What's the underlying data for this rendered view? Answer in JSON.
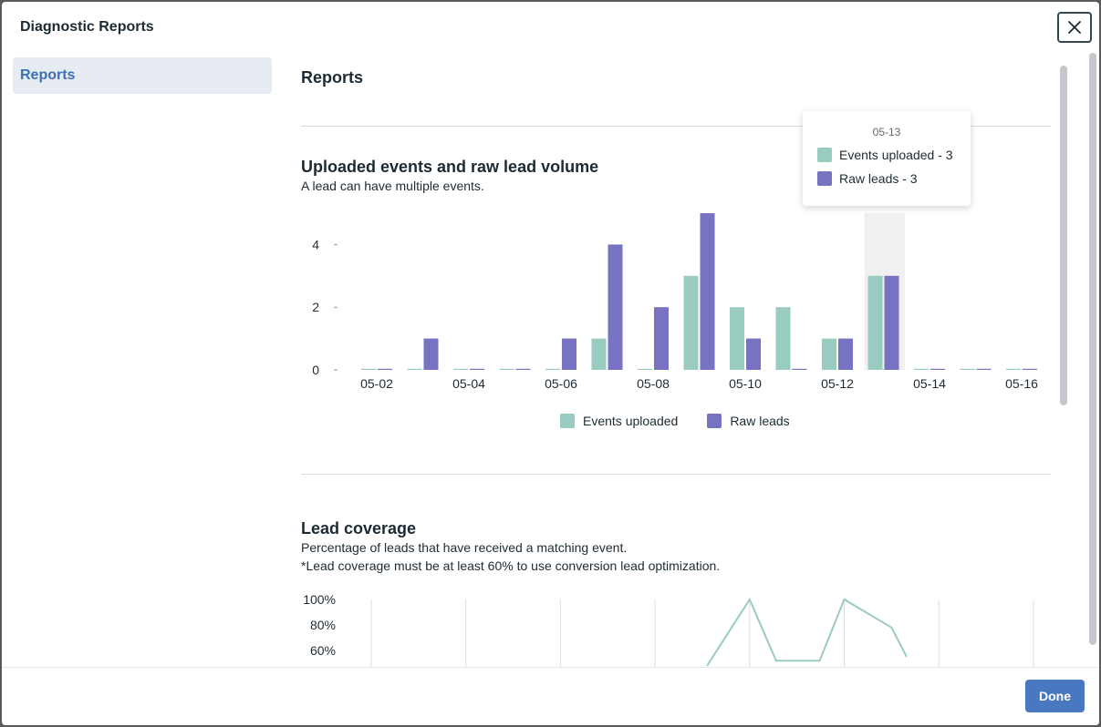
{
  "dialog": {
    "title": "Diagnostic Reports",
    "close_icon": "close-icon",
    "done_label": "Done"
  },
  "sidebar": {
    "items": [
      {
        "label": "Reports",
        "selected": true
      }
    ]
  },
  "main": {
    "title": "Reports",
    "sections": [
      {
        "title": "Uploaded events and raw lead volume",
        "subtitle": "A lead can have multiple events."
      },
      {
        "title": "Lead coverage",
        "subtitle": "Percentage of leads that have received a matching event.",
        "note": "*Lead coverage must be at least 60% to use conversion lead optimization."
      }
    ]
  },
  "tooltip": {
    "date": "05-13",
    "events_label": "Events uploaded - 3",
    "leads_label": "Raw leads - 3"
  },
  "colors": {
    "events": "#9acbc0",
    "leads": "#7772c2",
    "accent": "#4a78c0"
  },
  "chart_data": [
    {
      "type": "bar",
      "categories": [
        "05-02",
        "05-03",
        "05-04",
        "05-05",
        "05-06",
        "05-07",
        "05-08",
        "05-09",
        "05-10",
        "05-11",
        "05-12",
        "05-13",
        "05-14",
        "05-15",
        "05-16"
      ],
      "tick_labels": [
        "05-02",
        "05-04",
        "05-06",
        "05-08",
        "05-10",
        "05-12",
        "05-14",
        "05-16"
      ],
      "series": [
        {
          "name": "Events uploaded",
          "values": [
            0,
            0,
            0,
            0,
            0,
            1,
            0,
            3,
            2,
            2,
            1,
            3,
            0,
            0,
            0
          ]
        },
        {
          "name": "Raw leads",
          "values": [
            0,
            1,
            0,
            0,
            1,
            4,
            2,
            5,
            1,
            0,
            1,
            3,
            0,
            0,
            0
          ]
        }
      ],
      "yticks": [
        0,
        2,
        4
      ],
      "ylim": [
        0,
        5
      ],
      "highlighted_category": "05-13",
      "legend": "bottom"
    },
    {
      "type": "line",
      "yticks": [
        "100%",
        "80%",
        "60%"
      ],
      "x_index": [
        0,
        1,
        2,
        3,
        4,
        5,
        6,
        7
      ],
      "points": [
        {
          "x": 3.55,
          "y": 48
        },
        {
          "x": 4.0,
          "y": 100
        },
        {
          "x": 4.28,
          "y": 52
        },
        {
          "x": 4.74,
          "y": 52
        },
        {
          "x": 5.0,
          "y": 100
        },
        {
          "x": 5.5,
          "y": 78
        },
        {
          "x": 5.66,
          "y": 55
        }
      ],
      "ylim": [
        50,
        100
      ]
    }
  ]
}
